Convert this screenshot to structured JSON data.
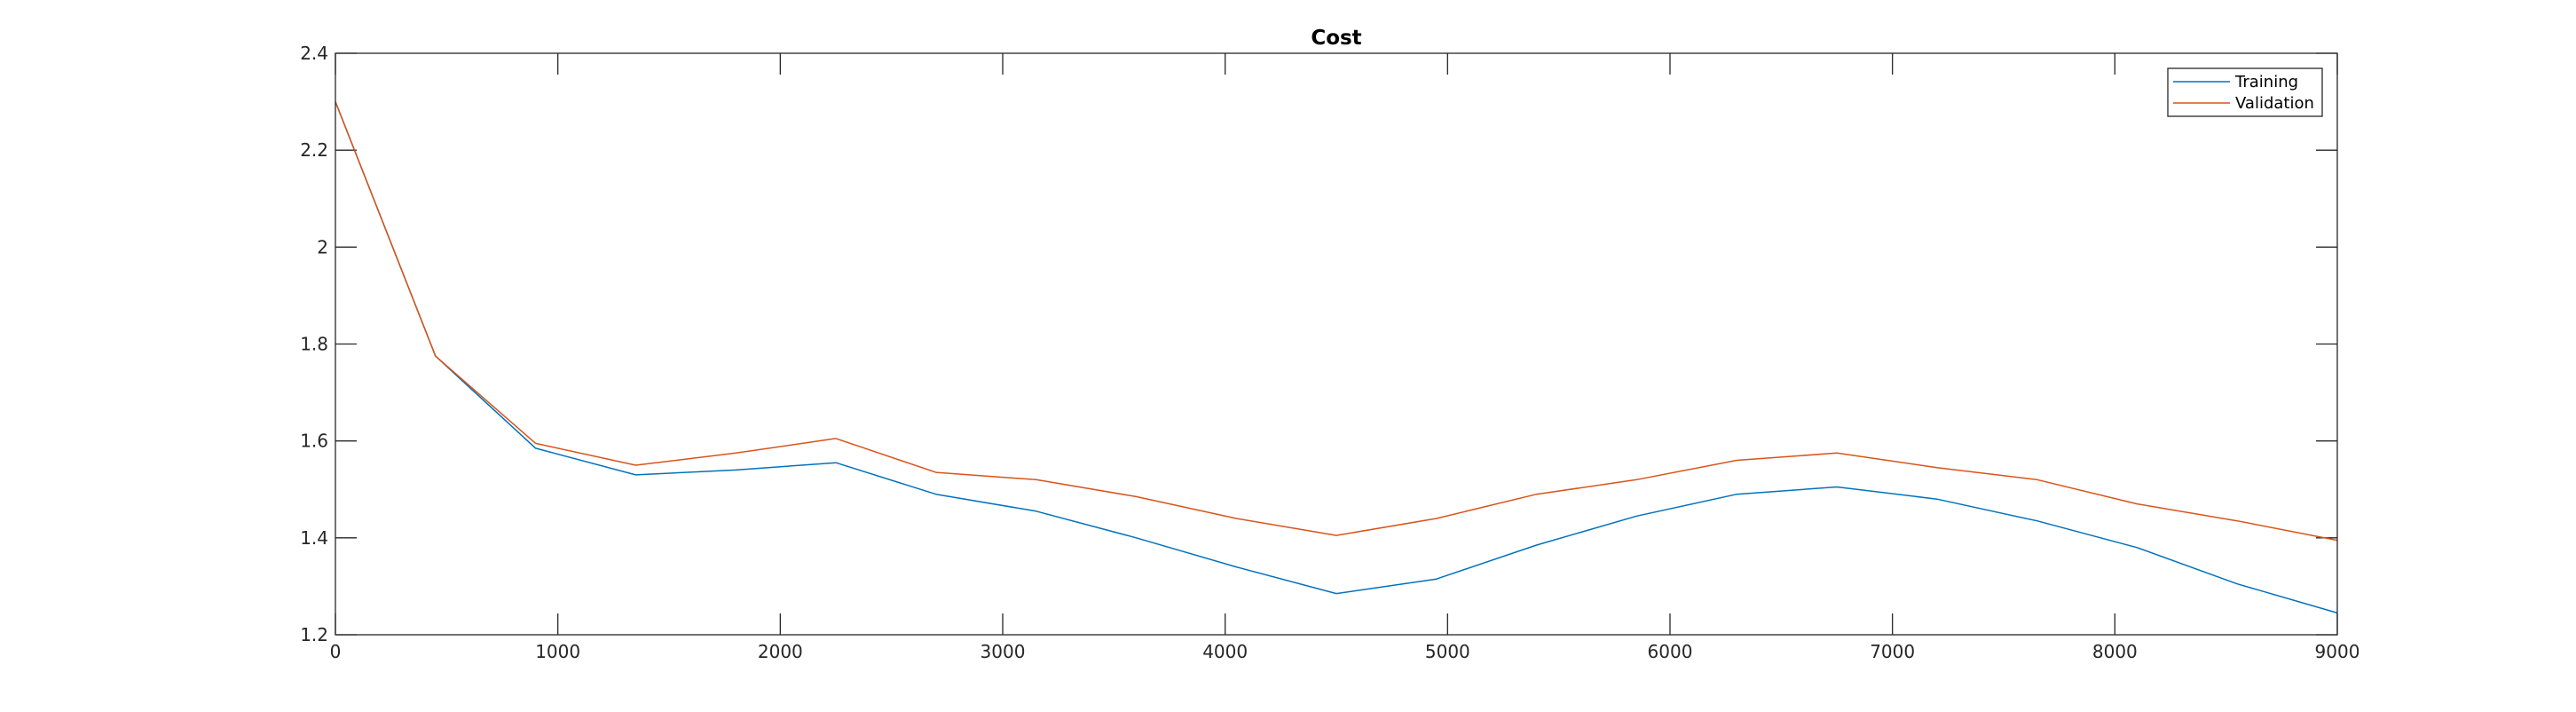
{
  "chart_data": {
    "type": "line",
    "title": "Cost",
    "xlabel": "",
    "ylabel": "",
    "xlim": [
      0,
      9000
    ],
    "ylim": [
      1.2,
      2.4
    ],
    "xticks": [
      0,
      1000,
      2000,
      3000,
      4000,
      5000,
      6000,
      7000,
      8000,
      9000
    ],
    "yticks": [
      1.2,
      1.4,
      1.6,
      1.8,
      2.0,
      2.2,
      2.4
    ],
    "xtick_labels": [
      "0",
      "1000",
      "2000",
      "3000",
      "4000",
      "5000",
      "6000",
      "7000",
      "8000",
      "9000"
    ],
    "ytick_labels": [
      "1.2",
      "1.4",
      "1.6",
      "1.8",
      "2",
      "2.2",
      "2.4"
    ],
    "grid": false,
    "legend_position": "top-right",
    "x": [
      0,
      450,
      900,
      1350,
      1800,
      2250,
      2700,
      3150,
      3600,
      4050,
      4500,
      4950,
      5400,
      5850,
      6300,
      6750,
      7200,
      7650,
      8100,
      8550,
      9000
    ],
    "series": [
      {
        "name": "Training",
        "color": "#0072BD",
        "values": [
          2.3,
          1.775,
          1.585,
          1.53,
          1.54,
          1.555,
          1.49,
          1.455,
          1.4,
          1.34,
          1.285,
          1.315,
          1.385,
          1.445,
          1.49,
          1.505,
          1.48,
          1.435,
          1.38,
          1.305,
          1.245
        ]
      },
      {
        "name": "Validation",
        "color": "#D95319",
        "values": [
          2.3,
          1.775,
          1.595,
          1.55,
          1.575,
          1.605,
          1.535,
          1.52,
          1.485,
          1.44,
          1.405,
          1.44,
          1.49,
          1.52,
          1.56,
          1.575,
          1.545,
          1.52,
          1.47,
          1.435,
          1.395
        ]
      }
    ]
  }
}
